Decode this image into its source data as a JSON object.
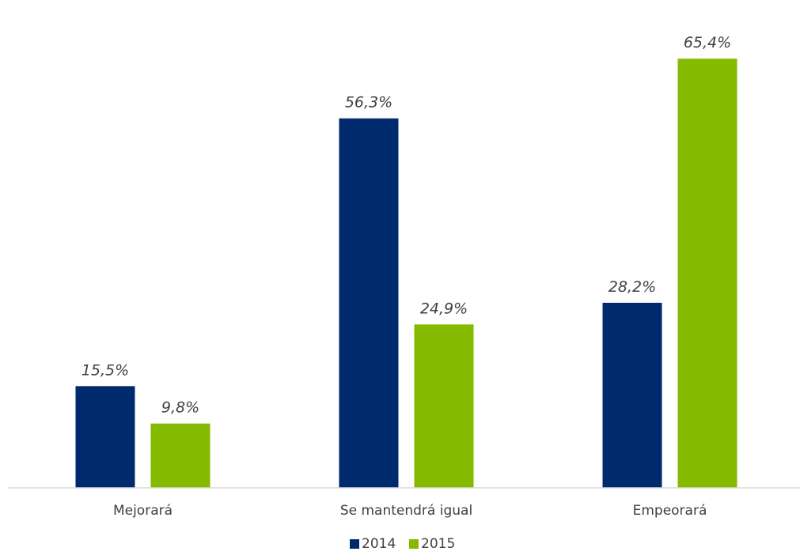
{
  "chart_data": {
    "type": "bar",
    "categories": [
      "Mejorará",
      "Se mantendrá igual",
      "Empeorará"
    ],
    "series": [
      {
        "name": "2014",
        "color": "#002a6e",
        "values": [
          15.5,
          56.3,
          28.2
        ],
        "labels": [
          "15,5%",
          "56,3%",
          "28,2%"
        ]
      },
      {
        "name": "2015",
        "color": "#84bb00",
        "values": [
          9.8,
          24.9,
          65.4
        ],
        "labels": [
          "9,8%",
          "24,9%",
          "65,4%"
        ]
      }
    ],
    "ylim": [
      0,
      70
    ],
    "grid": false,
    "legend_position": "bottom"
  }
}
